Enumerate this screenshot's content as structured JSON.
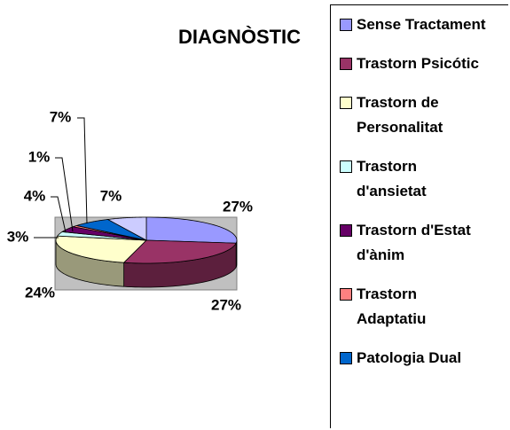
{
  "chart_data": {
    "type": "pie3d",
    "title": "DIAGNÒSTIC",
    "categories": [
      "Sense Tractament",
      "Trastorn Psicótic",
      "Trastorn de Personalitat",
      "Trastorn d'ansietat",
      "Trastorn d'Estat d'ànim",
      "Trastorn Adaptatiu",
      "Patologia Dual",
      null
    ],
    "values": [
      27,
      27,
      24,
      3,
      4,
      1,
      7,
      7
    ],
    "value_labels": [
      "27%",
      "27%",
      "24%",
      "3%",
      "4%",
      "1%",
      "7%",
      "7%"
    ],
    "colors": [
      "#9999FF",
      "#993366",
      "#FFFFCC",
      "#CCFFFF",
      "#660066",
      "#FF8080",
      "#0066CC",
      "#CCCCFF"
    ],
    "legend": "right"
  }
}
